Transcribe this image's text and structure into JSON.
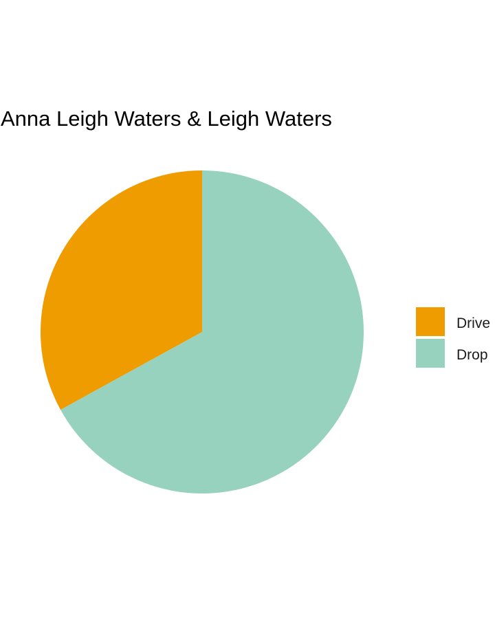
{
  "chart_data": {
    "type": "pie",
    "title": "Anna Leigh Waters & Leigh Waters",
    "categories": [
      "Drive",
      "Drop"
    ],
    "values": [
      0.33,
      0.67
    ],
    "colors": [
      "#EE9C00",
      "#96D2BE"
    ],
    "legend_position": "right",
    "start_angle": "12 o'clock",
    "direction": "counter-clockwise"
  }
}
